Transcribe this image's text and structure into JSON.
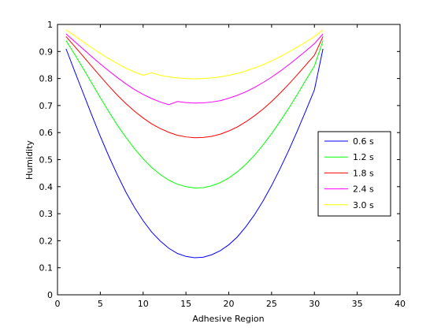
{
  "chart_data": {
    "type": "line",
    "title": "",
    "xlabel": "Adhesive Region",
    "ylabel": "Humidity",
    "xlim": [
      0,
      40
    ],
    "ylim": [
      0,
      1
    ],
    "xticks": [
      0,
      5,
      10,
      15,
      20,
      25,
      30,
      35,
      40
    ],
    "yticks": [
      0,
      0.1,
      0.2,
      0.3,
      0.4,
      0.5,
      0.6,
      0.7,
      0.8,
      0.9,
      1
    ],
    "xtick_labels": [
      "0",
      "5",
      "10",
      "15",
      "20",
      "25",
      "30",
      "35",
      "40"
    ],
    "ytick_labels": [
      "0",
      "0.1",
      "0.2",
      "0.3",
      "0.4",
      "0.5",
      "0.6",
      "0.7",
      "0.8",
      "0.9",
      "1"
    ],
    "grid": false,
    "legend_position": "right",
    "x": [
      1,
      2,
      3,
      4,
      5,
      6,
      7,
      8,
      9,
      10,
      11,
      12,
      13,
      14,
      15,
      16,
      17,
      18,
      19,
      20,
      21,
      22,
      23,
      24,
      25,
      26,
      27,
      28,
      29,
      30,
      31
    ],
    "series": [
      {
        "name": "0.6 s",
        "color": "#0000ff",
        "values": [
          0.91,
          0.827,
          0.746,
          0.665,
          0.586,
          0.512,
          0.443,
          0.379,
          0.323,
          0.274,
          0.232,
          0.199,
          0.172,
          0.153,
          0.142,
          0.137,
          0.139,
          0.148,
          0.163,
          0.185,
          0.214,
          0.252,
          0.296,
          0.347,
          0.404,
          0.467,
          0.534,
          0.606,
          0.681,
          0.758,
          0.91
        ]
      },
      {
        "name": "1.2 s",
        "color": "#00ff00",
        "values": [
          0.94,
          0.89,
          0.837,
          0.783,
          0.729,
          0.677,
          0.627,
          0.582,
          0.54,
          0.503,
          0.471,
          0.445,
          0.424,
          0.409,
          0.4,
          0.395,
          0.396,
          0.403,
          0.415,
          0.432,
          0.455,
          0.483,
          0.516,
          0.554,
          0.596,
          0.642,
          0.69,
          0.741,
          0.794,
          0.846,
          0.94
        ]
      },
      {
        "name": "1.8 s",
        "color": "#ff0000",
        "values": [
          0.955,
          0.919,
          0.882,
          0.845,
          0.808,
          0.772,
          0.738,
          0.707,
          0.679,
          0.654,
          0.632,
          0.615,
          0.601,
          0.59,
          0.584,
          0.581,
          0.582,
          0.586,
          0.594,
          0.606,
          0.621,
          0.64,
          0.662,
          0.687,
          0.715,
          0.746,
          0.779,
          0.814,
          0.85,
          0.886,
          0.955
        ]
      },
      {
        "name": "2.4 s",
        "color": "#ff00ff",
        "values": [
          0.965,
          0.937,
          0.909,
          0.881,
          0.854,
          0.828,
          0.803,
          0.78,
          0.759,
          0.741,
          0.726,
          0.713,
          0.703,
          0.715,
          0.711,
          0.709,
          0.71,
          0.713,
          0.718,
          0.727,
          0.738,
          0.751,
          0.767,
          0.785,
          0.805,
          0.827,
          0.851,
          0.876,
          0.902,
          0.929,
          0.965
        ]
      },
      {
        "name": "3.0 s",
        "color": "#ffff00",
        "values": [
          0.98,
          0.958,
          0.936,
          0.914,
          0.893,
          0.873,
          0.855,
          0.838,
          0.824,
          0.812,
          0.821,
          0.812,
          0.806,
          0.802,
          0.8,
          0.799,
          0.8,
          0.802,
          0.806,
          0.812,
          0.819,
          0.828,
          0.839,
          0.851,
          0.865,
          0.881,
          0.898,
          0.916,
          0.935,
          0.955,
          0.98
        ]
      }
    ]
  }
}
